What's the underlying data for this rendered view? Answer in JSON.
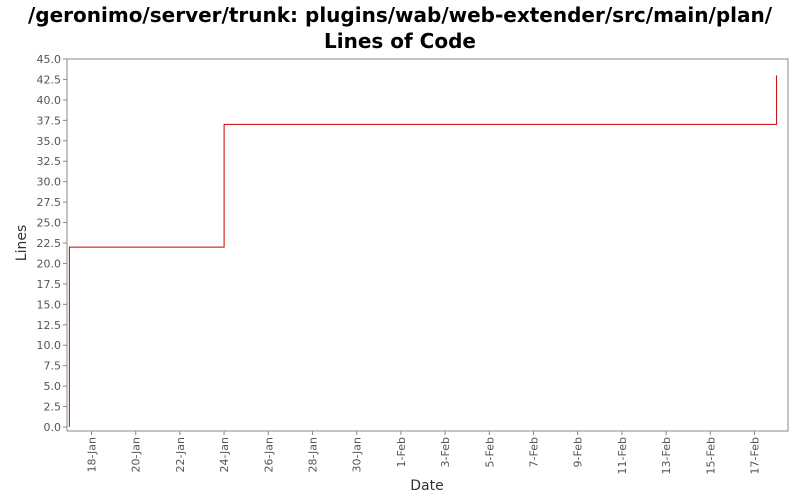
{
  "chart_data": {
    "type": "line",
    "title": "/geronimo/server/trunk: plugins/wab/web-extender/src/main/plan/ Lines of Code",
    "xlabel": "Date",
    "ylabel": "Lines",
    "ylim": [
      0,
      45
    ],
    "y_ticks": [
      "0.0",
      "2.5",
      "5.0",
      "7.5",
      "10.0",
      "12.5",
      "15.0",
      "17.5",
      "20.0",
      "22.5",
      "25.0",
      "27.5",
      "30.0",
      "32.5",
      "35.0",
      "37.5",
      "40.0",
      "42.5",
      "45.0"
    ],
    "x_ticks": [
      "18-Jan",
      "20-Jan",
      "22-Jan",
      "24-Jan",
      "26-Jan",
      "28-Jan",
      "30-Jan",
      "1-Feb",
      "3-Feb",
      "5-Feb",
      "7-Feb",
      "9-Feb",
      "11-Feb",
      "13-Feb",
      "15-Feb",
      "17-Feb"
    ],
    "series": [
      {
        "color": "#cc0000",
        "step": true,
        "x": [
          "17-Jan",
          "17-Jan",
          "24-Jan",
          "24-Jan",
          "18-Feb",
          "18-Feb"
        ],
        "values": [
          0,
          22,
          22,
          37,
          37,
          43
        ]
      }
    ],
    "grid": false,
    "legend": "none"
  }
}
